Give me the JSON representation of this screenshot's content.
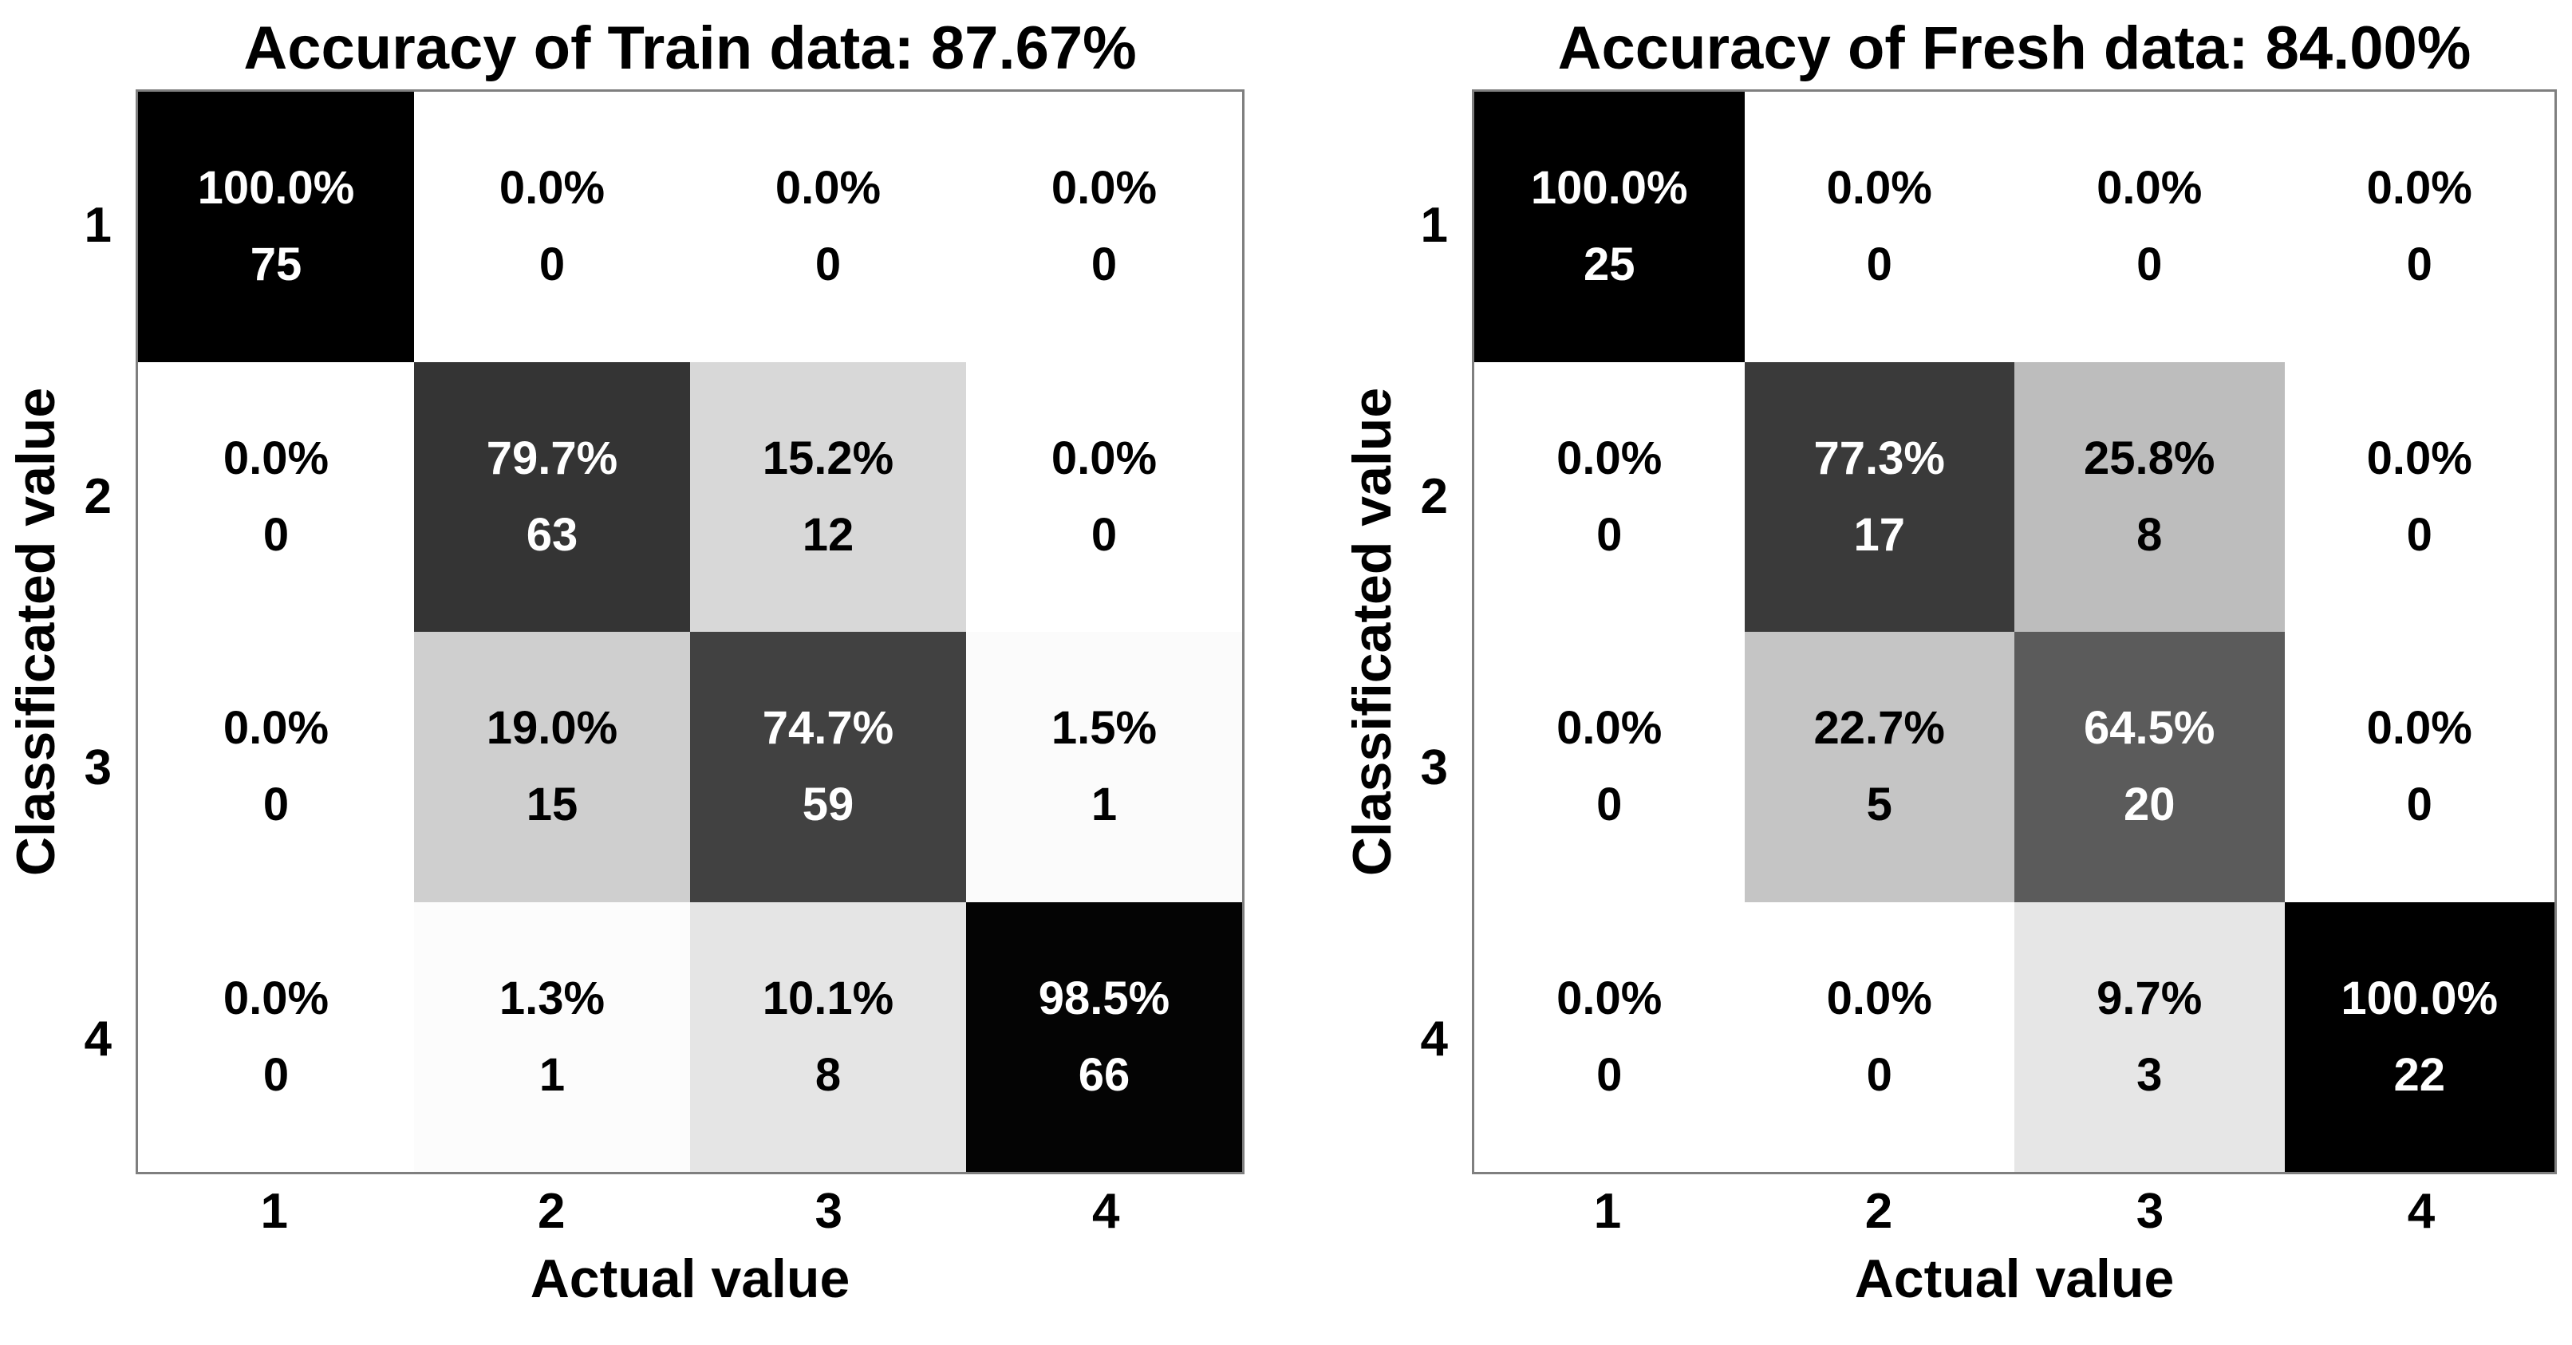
{
  "figure": {
    "background": "#ffffff",
    "text_color": "#000000",
    "plot_border_color": "#7f7f7f"
  },
  "chart_data": [
    {
      "type": "heatmap",
      "title": "Accuracy of Train data: 87.67%",
      "accuracy": "87.67%",
      "xlabel": "Actual value",
      "ylabel": "Classificated value",
      "x_categories": [
        "1",
        "2",
        "3",
        "4"
      ],
      "y_categories": [
        "1",
        "2",
        "3",
        "4"
      ],
      "colormap": {
        "low_value_color": "#ffffff",
        "high_value_color": "#000000"
      },
      "legend": "none",
      "grid": "off",
      "percent_matrix": [
        [
          100.0,
          0.0,
          0.0,
          0.0
        ],
        [
          0.0,
          79.7,
          15.2,
          0.0
        ],
        [
          0.0,
          19.0,
          74.7,
          1.5
        ],
        [
          0.0,
          1.3,
          10.1,
          98.5
        ]
      ],
      "count_matrix": [
        [
          75,
          0,
          0,
          0
        ],
        [
          0,
          63,
          12,
          0
        ],
        [
          0,
          15,
          59,
          1
        ],
        [
          0,
          1,
          8,
          66
        ]
      ],
      "percent_labels": [
        [
          "100.0%",
          "0.0%",
          "0.0%",
          "0.0%"
        ],
        [
          "0.0%",
          "79.7%",
          "15.2%",
          "0.0%"
        ],
        [
          "0.0%",
          "19.0%",
          "74.7%",
          "1.5%"
        ],
        [
          "0.0%",
          "1.3%",
          "10.1%",
          "98.5%"
        ]
      ],
      "count_labels": [
        [
          "75",
          "0",
          "0",
          "0"
        ],
        [
          "0",
          "63",
          "12",
          "0"
        ],
        [
          "0",
          "15",
          "59",
          "1"
        ],
        [
          "0",
          "1",
          "8",
          "66"
        ]
      ]
    },
    {
      "type": "heatmap",
      "title": "Accuracy of Fresh data: 84.00%",
      "accuracy": "84.00%",
      "xlabel": "Actual value",
      "ylabel": "Classificated value",
      "x_categories": [
        "1",
        "2",
        "3",
        "4"
      ],
      "y_categories": [
        "1",
        "2",
        "3",
        "4"
      ],
      "colormap": {
        "low_value_color": "#ffffff",
        "high_value_color": "#000000"
      },
      "legend": "none",
      "grid": "off",
      "percent_matrix": [
        [
          100.0,
          0.0,
          0.0,
          0.0
        ],
        [
          0.0,
          77.3,
          25.8,
          0.0
        ],
        [
          0.0,
          22.7,
          64.5,
          0.0
        ],
        [
          0.0,
          0.0,
          9.7,
          100.0
        ]
      ],
      "count_matrix": [
        [
          25,
          0,
          0,
          0
        ],
        [
          0,
          17,
          8,
          0
        ],
        [
          0,
          5,
          20,
          0
        ],
        [
          0,
          0,
          3,
          22
        ]
      ],
      "percent_labels": [
        [
          "100.0%",
          "0.0%",
          "0.0%",
          "0.0%"
        ],
        [
          "0.0%",
          "77.3%",
          "25.8%",
          "0.0%"
        ],
        [
          "0.0%",
          "22.7%",
          "64.5%",
          "0.0%"
        ],
        [
          "0.0%",
          "0.0%",
          "9.7%",
          "100.0%"
        ]
      ],
      "count_labels": [
        [
          "25",
          "0",
          "0",
          "0"
        ],
        [
          "0",
          "17",
          "8",
          "0"
        ],
        [
          "0",
          "5",
          "20",
          "0"
        ],
        [
          "0",
          "0",
          "3",
          "22"
        ]
      ]
    }
  ]
}
